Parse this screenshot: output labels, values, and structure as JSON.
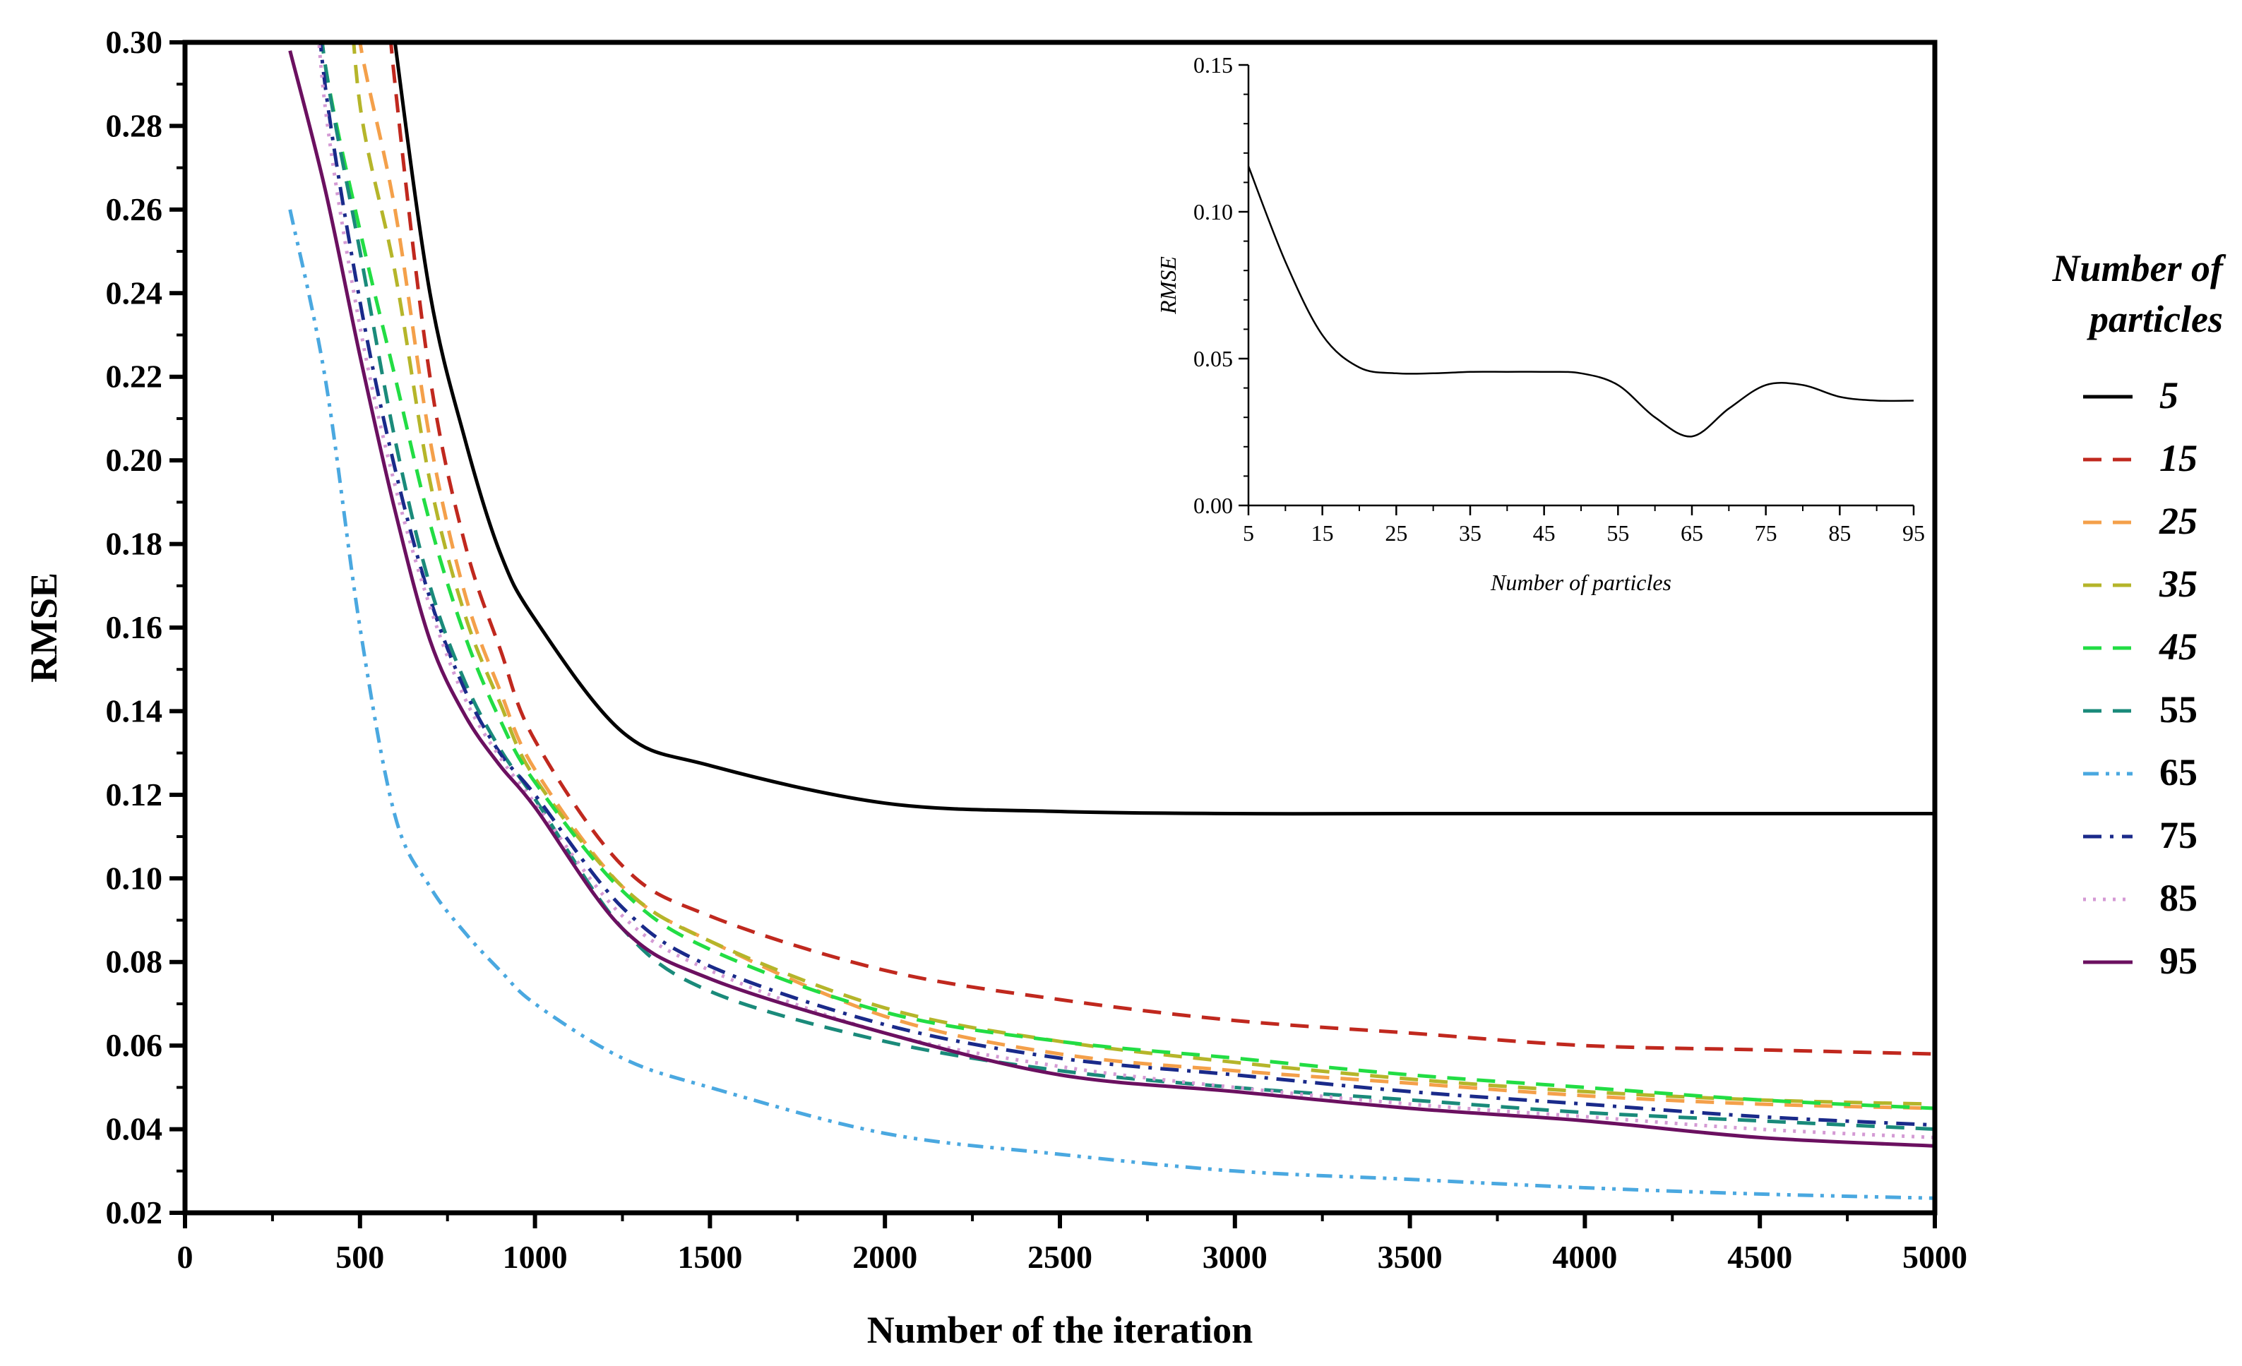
{
  "chart_data": [
    {
      "type": "line",
      "title": "",
      "xlabel": "Number of the iteration",
      "ylabel": "RMSE",
      "xlim": [
        0,
        5000
      ],
      "ylim": [
        0.02,
        0.3
      ],
      "x_ticks": [
        0,
        500,
        1000,
        1500,
        2000,
        2500,
        3000,
        3500,
        4000,
        4500,
        5000
      ],
      "y_ticks": [
        0.02,
        0.04,
        0.06,
        0.08,
        0.1,
        0.12,
        0.14,
        0.16,
        0.18,
        0.2,
        0.22,
        0.24,
        0.26,
        0.28,
        0.3
      ],
      "x_tick_labels": [
        "0",
        "500",
        "1000",
        "1500",
        "2000",
        "2500",
        "3000",
        "3500",
        "4000",
        "4500",
        "5000"
      ],
      "y_tick_labels": [
        "0.02",
        "0.04",
        "0.06",
        "0.08",
        "0.10",
        "0.12",
        "0.14",
        "0.16",
        "0.18",
        "0.20",
        "0.22",
        "0.24",
        "0.26",
        "0.28",
        "0.30"
      ],
      "legend": {
        "title_line1": "Number of",
        "title_line2": "particles",
        "position": "right"
      },
      "x": [
        300,
        400,
        500,
        600,
        700,
        800,
        900,
        1000,
        1250,
        1500,
        2000,
        2500,
        3000,
        3500,
        4000,
        4500,
        5000
      ],
      "series": [
        {
          "name": "5",
          "label": "5",
          "color": "#000000",
          "dash": "solid",
          "italic": true,
          "values": [
            null,
            null,
            null,
            0.3,
            0.24,
            0.205,
            0.178,
            0.162,
            0.135,
            0.127,
            0.118,
            0.116,
            0.1155,
            0.1155,
            0.1155,
            0.1155,
            0.1155
          ]
        },
        {
          "name": "15",
          "label": "15",
          "color": "#c0281e",
          "dash": "dashed",
          "italic": true,
          "values": [
            null,
            null,
            null,
            0.29,
            0.22,
            0.18,
            0.155,
            0.133,
            0.103,
            0.091,
            0.078,
            0.071,
            0.066,
            0.063,
            0.06,
            0.059,
            0.058
          ]
        },
        {
          "name": "25",
          "label": "25",
          "color": "#f4a04a",
          "dash": "dashed",
          "italic": true,
          "values": [
            null,
            null,
            0.3,
            0.26,
            0.205,
            0.168,
            0.145,
            0.126,
            0.098,
            0.085,
            0.067,
            0.058,
            0.054,
            0.051,
            0.048,
            0.046,
            0.045
          ]
        },
        {
          "name": "35",
          "label": "35",
          "color": "#b5b52a",
          "dash": "dashed",
          "italic": true,
          "values": [
            null,
            null,
            0.285,
            0.245,
            0.195,
            0.163,
            0.142,
            0.124,
            0.098,
            0.085,
            0.069,
            0.061,
            0.056,
            0.052,
            0.049,
            0.047,
            0.046
          ]
        },
        {
          "name": "45",
          "label": "45",
          "color": "#22dd44",
          "dash": "dashed",
          "italic": true,
          "values": [
            null,
            0.295,
            0.255,
            0.22,
            0.185,
            0.158,
            0.138,
            0.123,
            0.097,
            0.083,
            0.068,
            0.061,
            0.057,
            0.053,
            0.05,
            0.047,
            0.045
          ]
        },
        {
          "name": "55",
          "label": "55",
          "color": "#1a8a7a",
          "dash": "dashed",
          "italic": false,
          "values": [
            null,
            0.295,
            0.25,
            0.205,
            0.17,
            0.147,
            0.131,
            0.119,
            0.088,
            0.073,
            0.061,
            0.054,
            0.05,
            0.047,
            0.044,
            0.042,
            0.04
          ]
        },
        {
          "name": "65",
          "label": "65",
          "color": "#4aa8e0",
          "dash": "dashdotdot",
          "italic": false,
          "values": [
            0.26,
            0.22,
            0.16,
            0.115,
            0.098,
            0.087,
            0.078,
            0.07,
            0.057,
            0.05,
            0.039,
            0.034,
            0.03,
            0.028,
            0.026,
            0.0245,
            0.0235
          ]
        },
        {
          "name": "75",
          "label": "75",
          "color": "#1a2a8a",
          "dash": "dashdot",
          "italic": false,
          "values": [
            null,
            0.29,
            0.238,
            0.198,
            0.167,
            0.145,
            0.13,
            0.12,
            0.093,
            0.079,
            0.065,
            0.057,
            0.053,
            0.049,
            0.046,
            0.043,
            0.041
          ]
        },
        {
          "name": "85",
          "label": "85",
          "color": "#d49ad4",
          "dash": "dotted",
          "italic": false,
          "values": [
            null,
            0.285,
            0.232,
            0.194,
            0.165,
            0.143,
            0.129,
            0.118,
            0.091,
            0.078,
            0.063,
            0.055,
            0.05,
            0.046,
            0.043,
            0.04,
            0.038
          ]
        },
        {
          "name": "95",
          "label": "95",
          "color": "#6b1060",
          "dash": "solid",
          "italic": false,
          "values": [
            0.298,
            0.265,
            0.225,
            0.188,
            0.157,
            0.139,
            0.127,
            0.117,
            0.088,
            0.076,
            0.063,
            0.053,
            0.049,
            0.045,
            0.042,
            0.038,
            0.036
          ]
        }
      ]
    },
    {
      "type": "line",
      "title": "",
      "xlabel": "Number of particles",
      "ylabel": "RMSE",
      "xlim": [
        5,
        95
      ],
      "ylim": [
        0.0,
        0.15
      ],
      "x_ticks": [
        5,
        15,
        25,
        35,
        45,
        55,
        65,
        75,
        85,
        95
      ],
      "y_ticks": [
        0.0,
        0.05,
        0.1,
        0.15
      ],
      "x_tick_labels": [
        "5",
        "15",
        "25",
        "35",
        "45",
        "55",
        "65",
        "75",
        "85",
        "95"
      ],
      "y_tick_labels": [
        "0.00",
        "0.05",
        "0.10",
        "0.15"
      ],
      "placement": "top-right inset",
      "series": [
        {
          "name": "RMSE",
          "color": "#000000",
          "x": [
            5,
            10,
            15,
            20,
            25,
            30,
            35,
            40,
            45,
            50,
            55,
            60,
            65,
            70,
            75,
            80,
            85,
            90,
            95
          ],
          "values": [
            0.1155,
            0.083,
            0.058,
            0.047,
            0.045,
            0.045,
            0.0455,
            0.0455,
            0.0455,
            0.045,
            0.041,
            0.03,
            0.0235,
            0.033,
            0.041,
            0.041,
            0.037,
            0.0357,
            0.0357
          ]
        }
      ]
    }
  ]
}
